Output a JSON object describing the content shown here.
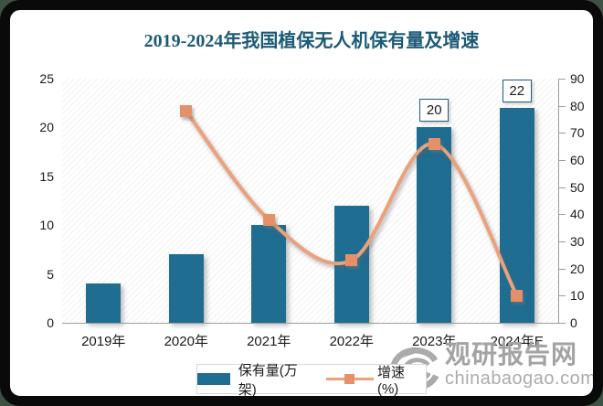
{
  "chart_data": {
    "type": "bar+line combo",
    "title": "2019-2024年我国植保无人机保有量及增速",
    "categories": [
      "2019年",
      "2020年",
      "2021年",
      "2022年",
      "2023年",
      "2024年E"
    ],
    "series": [
      {
        "name": "保有量(万架)",
        "type": "bar",
        "axis": "left",
        "values": [
          4,
          7,
          10,
          12,
          20,
          22
        ],
        "data_labels": [
          null,
          null,
          null,
          null,
          "20",
          "22"
        ],
        "color": "#1f6d91"
      },
      {
        "name": "增速(%)",
        "type": "line",
        "axis": "right",
        "values": [
          null,
          78,
          38,
          23,
          66,
          10
        ],
        "color": "#eba17c",
        "marker_color": "#e6906a"
      }
    ],
    "axes": {
      "left": {
        "min": 0,
        "max": 25,
        "ticks": [
          0,
          5,
          10,
          15,
          20,
          25
        ]
      },
      "right": {
        "min": 0,
        "max": 90,
        "ticks": [
          0,
          10,
          20,
          30,
          40,
          50,
          60,
          70,
          80,
          90
        ]
      }
    },
    "grid": false,
    "legend_position": "bottom",
    "plot_background": "diagonal-hatch"
  },
  "watermark": {
    "title": "观研报告网",
    "domain": "chinabaogao.com"
  },
  "colors": {
    "title_text": "#1b5a77",
    "bar_fill": "#1f6d91",
    "line_stroke": "#eba17c",
    "marker_fill": "#e6906a",
    "label_box_border": "#1f5c78",
    "axis_line": "#9c9c9c",
    "axis_text": "#1a1a1a",
    "outer_background": "#3c5244",
    "frame_border": "#0a0a0a",
    "watermark_gray": "#a3a3a3"
  }
}
